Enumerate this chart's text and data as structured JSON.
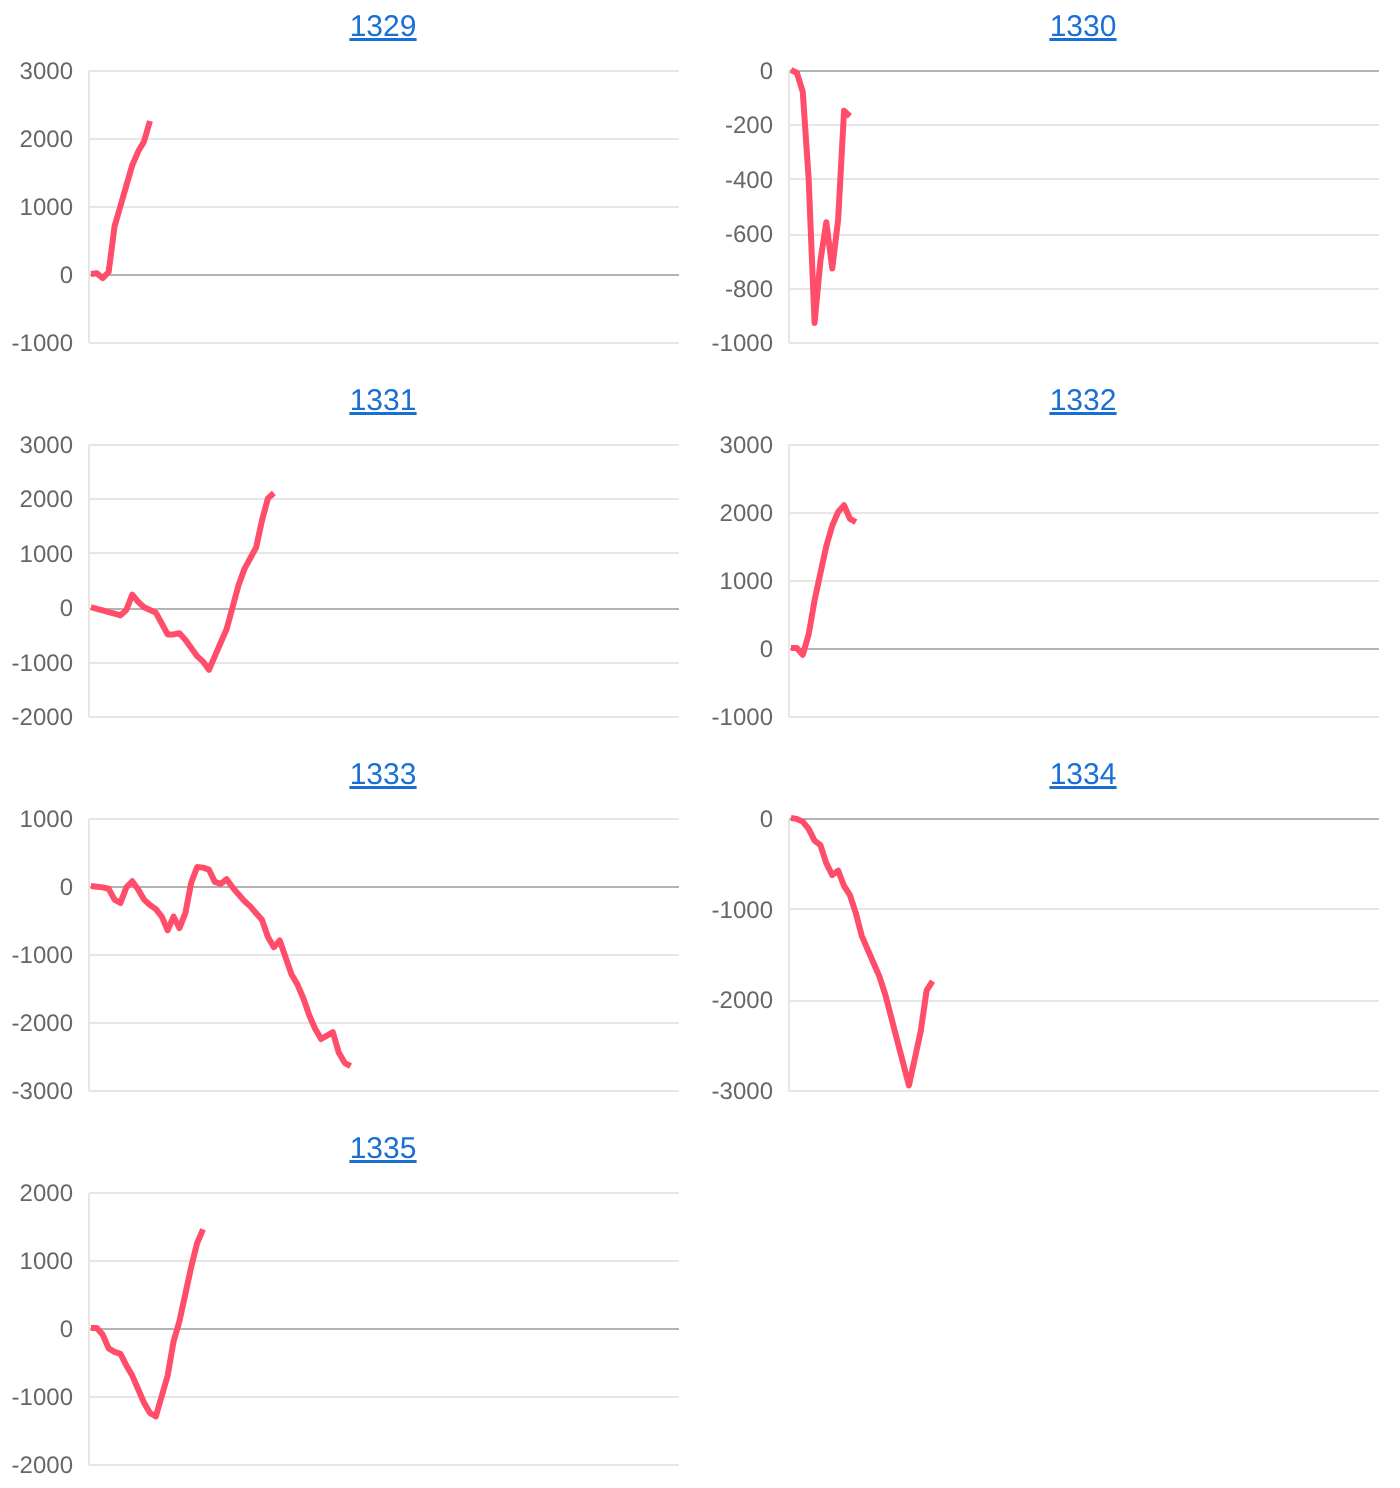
{
  "chart_data": [
    {
      "type": "line",
      "title": "1329",
      "categories": [
        null,
        null,
        null,
        null,
        null,
        null,
        null,
        null,
        null,
        null,
        null,
        null,
        null,
        null,
        null,
        null,
        null,
        null,
        null,
        null,
        null,
        null,
        null,
        null,
        null,
        null,
        null,
        null,
        null,
        null,
        null,
        null,
        null,
        null,
        null,
        null,
        null,
        null,
        null,
        null,
        null,
        null,
        null,
        null,
        null,
        null,
        null,
        null,
        null,
        null,
        null,
        null,
        null,
        null,
        null,
        null,
        null,
        null,
        null,
        null,
        null,
        null,
        null,
        null,
        null,
        null,
        null,
        null,
        null,
        null,
        null,
        null,
        null,
        null,
        null,
        null,
        null,
        null,
        null,
        null,
        null,
        null,
        null,
        null,
        null,
        null,
        null,
        null,
        null,
        null,
        null,
        null,
        null,
        null,
        null,
        null,
        null,
        null,
        null,
        null
      ],
      "series": [
        {
          "color": "#ff4d6a",
          "values": [
            0,
            10,
            -60,
            30,
            700,
            1000,
            1300,
            1600,
            1800,
            1950,
            2250,
            null,
            null,
            null,
            null,
            null,
            null,
            null,
            null,
            null,
            null,
            null,
            null,
            null,
            null,
            null,
            null,
            null,
            null,
            null,
            null,
            null,
            null,
            null,
            null,
            null,
            null,
            null,
            null,
            null,
            null,
            null,
            null,
            null,
            null,
            null,
            null,
            null,
            null,
            null,
            null,
            null,
            null,
            null,
            null,
            null,
            null,
            null,
            null,
            null,
            null,
            null,
            null,
            null,
            null,
            null,
            null,
            null,
            null,
            null,
            null,
            null,
            null,
            null,
            null,
            null,
            null,
            null,
            null,
            null,
            null,
            null,
            null,
            null,
            null,
            null,
            null,
            null,
            null,
            null,
            null,
            null,
            null,
            null,
            null,
            null,
            null,
            null,
            null,
            null
          ]
        }
      ],
      "ylim": [
        -1000,
        3000
      ],
      "yticks": [
        -1000,
        0,
        1000,
        2000,
        3000
      ],
      "grid": "y",
      "tick_labels": "y"
    },
    {
      "type": "line",
      "title": "1330",
      "categories": [
        null,
        null,
        null,
        null,
        null,
        null,
        null,
        null,
        null,
        null,
        null,
        null,
        null,
        null,
        null,
        null,
        null,
        null,
        null,
        null,
        null,
        null,
        null,
        null,
        null,
        null,
        null,
        null,
        null,
        null,
        null,
        null,
        null,
        null,
        null,
        null,
        null,
        null,
        null,
        null,
        null,
        null,
        null,
        null,
        null,
        null,
        null,
        null,
        null,
        null,
        null,
        null,
        null,
        null,
        null,
        null,
        null,
        null,
        null,
        null,
        null,
        null,
        null,
        null,
        null,
        null,
        null,
        null,
        null,
        null,
        null,
        null,
        null,
        null,
        null,
        null,
        null,
        null,
        null,
        null,
        null,
        null,
        null,
        null,
        null,
        null,
        null,
        null,
        null,
        null,
        null,
        null,
        null,
        null,
        null,
        null,
        null,
        null,
        null,
        null
      ],
      "series": [
        {
          "color": "#ff4d6a",
          "values": [
            0,
            -10,
            -80,
            -400,
            -930,
            -700,
            -560,
            -730,
            -550,
            -150,
            -170,
            null,
            null,
            null,
            null,
            null,
            null,
            null,
            null,
            null,
            null,
            null,
            null,
            null,
            null,
            null,
            null,
            null,
            null,
            null,
            null,
            null,
            null,
            null,
            null,
            null,
            null,
            null,
            null,
            null,
            null,
            null,
            null,
            null,
            null,
            null,
            null,
            null,
            null,
            null,
            null,
            null,
            null,
            null,
            null,
            null,
            null,
            null,
            null,
            null,
            null,
            null,
            null,
            null,
            null,
            null,
            null,
            null,
            null,
            null,
            null,
            null,
            null,
            null,
            null,
            null,
            null,
            null,
            null,
            null,
            null,
            null,
            null,
            null,
            null,
            null,
            null,
            null,
            null,
            null,
            null,
            null,
            null,
            null,
            null,
            null,
            null,
            null,
            null,
            null
          ]
        }
      ],
      "ylim": [
        -1000,
        0
      ],
      "yticks": [
        -1000,
        -800,
        -600,
        -400,
        -200,
        0
      ],
      "grid": "y",
      "tick_labels": "y"
    },
    {
      "type": "line",
      "title": "1331",
      "categories": [
        null,
        null,
        null,
        null,
        null,
        null,
        null,
        null,
        null,
        null,
        null,
        null,
        null,
        null,
        null,
        null,
        null,
        null,
        null,
        null,
        null,
        null,
        null,
        null,
        null,
        null,
        null,
        null,
        null,
        null,
        null,
        null,
        null,
        null,
        null,
        null,
        null,
        null,
        null,
        null,
        null,
        null,
        null,
        null,
        null,
        null,
        null,
        null,
        null,
        null,
        null,
        null,
        null,
        null,
        null,
        null,
        null,
        null,
        null,
        null,
        null,
        null,
        null,
        null,
        null,
        null,
        null,
        null,
        null,
        null,
        null,
        null,
        null,
        null,
        null,
        null,
        null,
        null,
        null,
        null,
        null,
        null,
        null,
        null,
        null,
        null,
        null,
        null,
        null,
        null,
        null,
        null,
        null,
        null,
        null,
        null,
        null,
        null,
        null,
        null
      ],
      "series": [
        {
          "color": "#ff4d6a",
          "values": [
            0,
            -30,
            -60,
            -90,
            -120,
            -150,
            -50,
            230,
            100,
            0,
            -50,
            -100,
            -300,
            -500,
            -500,
            -480,
            -600,
            -750,
            -900,
            -1000,
            -1150,
            -900,
            -650,
            -400,
            0,
            400,
            700,
            900,
            1100,
            1600,
            2000,
            2100,
            null,
            null,
            null,
            null,
            null,
            null,
            null,
            null,
            null,
            null,
            null,
            null,
            null,
            null,
            null,
            null,
            null,
            null,
            null,
            null,
            null,
            null,
            null,
            null,
            null,
            null,
            null,
            null,
            null,
            null,
            null,
            null,
            null,
            null,
            null,
            null,
            null,
            null,
            null,
            null,
            null,
            null,
            null,
            null,
            null,
            null,
            null,
            null,
            null,
            null,
            null,
            null,
            null,
            null,
            null,
            null,
            null,
            null,
            null,
            null,
            null,
            null,
            null,
            null,
            null,
            null,
            null,
            null
          ]
        }
      ],
      "ylim": [
        -2000,
        3000
      ],
      "yticks": [
        -2000,
        -1000,
        0,
        1000,
        2000,
        3000
      ],
      "grid": "y",
      "tick_labels": "y"
    },
    {
      "type": "line",
      "title": "1332",
      "categories": [
        null,
        null,
        null,
        null,
        null,
        null,
        null,
        null,
        null,
        null,
        null,
        null,
        null,
        null,
        null,
        null,
        null,
        null,
        null,
        null,
        null,
        null,
        null,
        null,
        null,
        null,
        null,
        null,
        null,
        null,
        null,
        null,
        null,
        null,
        null,
        null,
        null,
        null,
        null,
        null,
        null,
        null,
        null,
        null,
        null,
        null,
        null,
        null,
        null,
        null,
        null,
        null,
        null,
        null,
        null,
        null,
        null,
        null,
        null,
        null,
        null,
        null,
        null,
        null,
        null,
        null,
        null,
        null,
        null,
        null,
        null,
        null,
        null,
        null,
        null,
        null,
        null,
        null,
        null,
        null,
        null,
        null,
        null,
        null,
        null,
        null,
        null,
        null,
        null,
        null,
        null,
        null,
        null,
        null,
        null,
        null,
        null,
        null,
        null,
        null
      ],
      "series": [
        {
          "color": "#ff4d6a",
          "values": [
            0,
            0,
            -100,
            200,
            700,
            1100,
            1500,
            1800,
            2000,
            2100,
            1900,
            1850,
            null,
            null,
            null,
            null,
            null,
            null,
            null,
            null,
            null,
            null,
            null,
            null,
            null,
            null,
            null,
            null,
            null,
            null,
            null,
            null,
            null,
            null,
            null,
            null,
            null,
            null,
            null,
            null,
            null,
            null,
            null,
            null,
            null,
            null,
            null,
            null,
            null,
            null,
            null,
            null,
            null,
            null,
            null,
            null,
            null,
            null,
            null,
            null,
            null,
            null,
            null,
            null,
            null,
            null,
            null,
            null,
            null,
            null,
            null,
            null,
            null,
            null,
            null,
            null,
            null,
            null,
            null,
            null,
            null,
            null,
            null,
            null,
            null,
            null,
            null,
            null,
            null,
            null,
            null,
            null,
            null,
            null,
            null,
            null,
            null,
            null,
            null,
            null
          ]
        }
      ],
      "ylim": [
        -1000,
        3000
      ],
      "yticks": [
        -1000,
        0,
        1000,
        2000,
        3000
      ],
      "grid": "y",
      "tick_labels": "y"
    },
    {
      "type": "line",
      "title": "1333",
      "categories": [
        null,
        null,
        null,
        null,
        null,
        null,
        null,
        null,
        null,
        null,
        null,
        null,
        null,
        null,
        null,
        null,
        null,
        null,
        null,
        null,
        null,
        null,
        null,
        null,
        null,
        null,
        null,
        null,
        null,
        null,
        null,
        null,
        null,
        null,
        null,
        null,
        null,
        null,
        null,
        null,
        null,
        null,
        null,
        null,
        null,
        null,
        null,
        null,
        null,
        null,
        null,
        null,
        null,
        null,
        null,
        null,
        null,
        null,
        null,
        null,
        null,
        null,
        null,
        null,
        null,
        null,
        null,
        null,
        null,
        null,
        null,
        null,
        null,
        null,
        null,
        null,
        null,
        null,
        null,
        null,
        null,
        null,
        null,
        null,
        null,
        null,
        null,
        null,
        null,
        null,
        null,
        null,
        null,
        null,
        null,
        null,
        null,
        null,
        null,
        null
      ],
      "series": [
        {
          "color": "#ff4d6a",
          "values": [
            0,
            -10,
            -20,
            -40,
            -200,
            -250,
            -20,
            70,
            -50,
            -200,
            -280,
            -340,
            -450,
            -650,
            -450,
            -620,
            -400,
            50,
            280,
            270,
            240,
            60,
            30,
            100,
            -20,
            -120,
            -220,
            -300,
            -400,
            -500,
            -750,
            -900,
            -800,
            -1050,
            -1300,
            -1450,
            -1650,
            -1900,
            -2100,
            -2250,
            -2200,
            -2150,
            -2450,
            -2600,
            -2650,
            null,
            null,
            null,
            null,
            null,
            null,
            null,
            null,
            null,
            null,
            null,
            null,
            null,
            null,
            null,
            null,
            null,
            null,
            null,
            null,
            null,
            null,
            null,
            null,
            null,
            null,
            null,
            null,
            null,
            null,
            null,
            null,
            null,
            null,
            null,
            null,
            null,
            null,
            null,
            null,
            null,
            null,
            null,
            null,
            null,
            null,
            null,
            null,
            null,
            null,
            null,
            null,
            null,
            null,
            null
          ]
        }
      ],
      "ylim": [
        -3000,
        1000
      ],
      "yticks": [
        -3000,
        -2000,
        -1000,
        0,
        1000
      ],
      "grid": "y",
      "tick_labels": "y"
    },
    {
      "type": "line",
      "title": "1334",
      "categories": [
        null,
        null,
        null,
        null,
        null,
        null,
        null,
        null,
        null,
        null,
        null,
        null,
        null,
        null,
        null,
        null,
        null,
        null,
        null,
        null,
        null,
        null,
        null,
        null,
        null,
        null,
        null,
        null,
        null,
        null,
        null,
        null,
        null,
        null,
        null,
        null,
        null,
        null,
        null,
        null,
        null,
        null,
        null,
        null,
        null,
        null,
        null,
        null,
        null,
        null,
        null,
        null,
        null,
        null,
        null,
        null,
        null,
        null,
        null,
        null,
        null,
        null,
        null,
        null,
        null,
        null,
        null,
        null,
        null,
        null,
        null,
        null,
        null,
        null,
        null,
        null,
        null,
        null,
        null,
        null,
        null,
        null,
        null,
        null,
        null,
        null,
        null,
        null,
        null,
        null,
        null,
        null,
        null,
        null,
        null,
        null,
        null,
        null,
        null,
        null
      ],
      "series": [
        {
          "color": "#ff4d6a",
          "values": [
            0,
            -10,
            -40,
            -120,
            -250,
            -300,
            -500,
            -630,
            -580,
            -750,
            -850,
            -1050,
            -1300,
            -1450,
            -1600,
            -1750,
            -1950,
            -2200,
            -2450,
            -2700,
            -2950,
            -2650,
            -2350,
            -1900,
            -1800,
            null,
            null,
            null,
            null,
            null,
            null,
            null,
            null,
            null,
            null,
            null,
            null,
            null,
            null,
            null,
            null,
            null,
            null,
            null,
            null,
            null,
            null,
            null,
            null,
            null,
            null,
            null,
            null,
            null,
            null,
            null,
            null,
            null,
            null,
            null,
            null,
            null,
            null,
            null,
            null,
            null,
            null,
            null,
            null,
            null,
            null,
            null,
            null,
            null,
            null,
            null,
            null,
            null,
            null,
            null,
            null,
            null,
            null,
            null,
            null,
            null,
            null,
            null,
            null,
            null,
            null,
            null,
            null,
            null,
            null,
            null,
            null,
            null,
            null,
            null
          ]
        }
      ],
      "ylim": [
        -3000,
        0
      ],
      "yticks": [
        -3000,
        -2000,
        -1000,
        0
      ],
      "grid": "y",
      "tick_labels": "y"
    },
    {
      "type": "line",
      "title": "1335",
      "categories": [
        null,
        null,
        null,
        null,
        null,
        null,
        null,
        null,
        null,
        null,
        null,
        null,
        null,
        null,
        null,
        null,
        null,
        null,
        null,
        null,
        null,
        null,
        null,
        null,
        null,
        null,
        null,
        null,
        null,
        null,
        null,
        null,
        null,
        null,
        null,
        null,
        null,
        null,
        null,
        null,
        null,
        null,
        null,
        null,
        null,
        null,
        null,
        null,
        null,
        null,
        null,
        null,
        null,
        null,
        null,
        null,
        null,
        null,
        null,
        null,
        null,
        null,
        null,
        null,
        null,
        null,
        null,
        null,
        null,
        null,
        null,
        null,
        null,
        null,
        null,
        null,
        null,
        null,
        null,
        null,
        null,
        null,
        null,
        null,
        null,
        null,
        null,
        null,
        null,
        null,
        null,
        null,
        null,
        null,
        null,
        null,
        null,
        null,
        null,
        null
      ],
      "series": [
        {
          "color": "#ff4d6a",
          "values": [
            0,
            0,
            -100,
            -300,
            -350,
            -380,
            -550,
            -700,
            -900,
            -1100,
            -1250,
            -1300,
            -1000,
            -700,
            -200,
            100,
            500,
            900,
            1250,
            1450,
            null,
            null,
            null,
            null,
            null,
            null,
            null,
            null,
            null,
            null,
            null,
            null,
            null,
            null,
            null,
            null,
            null,
            null,
            null,
            null,
            null,
            null,
            null,
            null,
            null,
            null,
            null,
            null,
            null,
            null,
            null,
            null,
            null,
            null,
            null,
            null,
            null,
            null,
            null,
            null,
            null,
            null,
            null,
            null,
            null,
            null,
            null,
            null,
            null,
            null,
            null,
            null,
            null,
            null,
            null,
            null,
            null,
            null,
            null,
            null,
            null,
            null,
            null,
            null,
            null,
            null,
            null,
            null,
            null,
            null,
            null,
            null,
            null,
            null,
            null,
            null,
            null,
            null,
            null,
            null
          ]
        }
      ],
      "ylim": [
        -2000,
        2000
      ],
      "yticks": [
        -2000,
        -1000,
        0,
        1000,
        2000
      ],
      "grid": "y",
      "tick_labels": "y"
    }
  ]
}
